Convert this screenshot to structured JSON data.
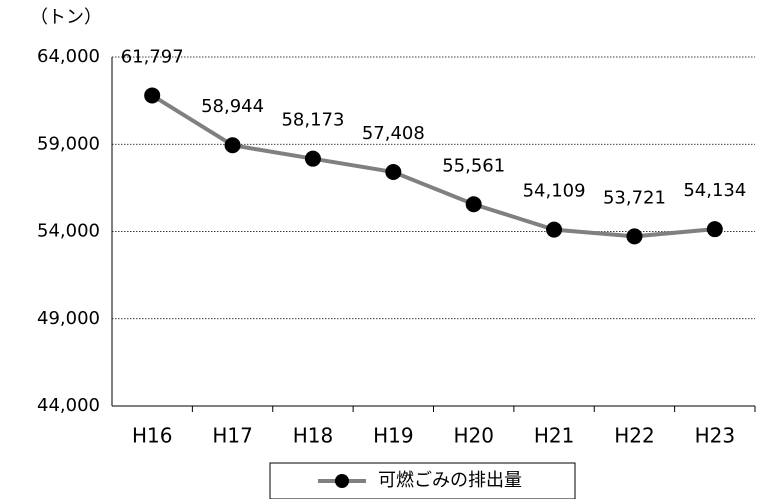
{
  "chart_data": {
    "type": "line",
    "y_axis_label": "（トン）",
    "categories": [
      "H16",
      "H17",
      "H18",
      "H19",
      "H20",
      "H21",
      "H22",
      "H23"
    ],
    "series": [
      {
        "name": "可燃ごみの排出量",
        "color": "#808080",
        "marker_color": "#000000",
        "values": [
          61797,
          58944,
          58173,
          57408,
          55561,
          54109,
          53721,
          54134
        ],
        "value_labels": [
          "61,797",
          "58,944",
          "58,173",
          "57,408",
          "55,561",
          "54,109",
          "53,721",
          "54,134"
        ]
      }
    ],
    "ylim": [
      44000,
      64000
    ],
    "yticks": [
      {
        "value": 44000,
        "label": "44,000"
      },
      {
        "value": 49000,
        "label": "49,000"
      },
      {
        "value": 54000,
        "label": "54,000"
      },
      {
        "value": 59000,
        "label": "59,000"
      },
      {
        "value": 64000,
        "label": "64,000"
      }
    ],
    "grid": true,
    "legend": "bottom"
  }
}
